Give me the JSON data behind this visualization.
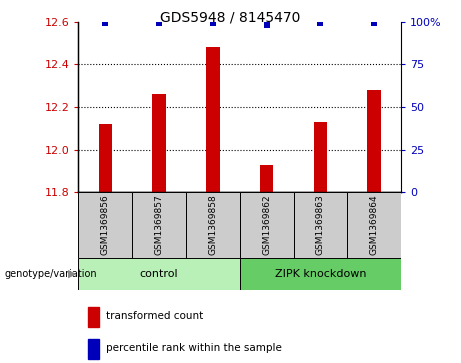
{
  "title": "GDS5948 / 8145470",
  "samples": [
    "GSM1369856",
    "GSM1369857",
    "GSM1369858",
    "GSM1369862",
    "GSM1369863",
    "GSM1369864"
  ],
  "bar_values": [
    12.12,
    12.26,
    12.48,
    11.93,
    12.13,
    12.28
  ],
  "dot_values": [
    99,
    99,
    99,
    98,
    99,
    99
  ],
  "ylim_left": [
    11.8,
    12.6
  ],
  "ylim_right": [
    0,
    100
  ],
  "yticks_left": [
    11.8,
    12.0,
    12.2,
    12.4,
    12.6
  ],
  "yticks_right": [
    0,
    25,
    50,
    75,
    100
  ],
  "bar_color": "#cc0000",
  "dot_color": "#0000bb",
  "groups": [
    {
      "label": "control",
      "indices": [
        0,
        1,
        2
      ],
      "color": "#b8f0b8"
    },
    {
      "label": "ZIPK knockdown",
      "indices": [
        3,
        4,
        5
      ],
      "color": "#66cc66"
    }
  ],
  "sample_box_color": "#cccccc",
  "legend_items": [
    {
      "color": "#cc0000",
      "label": "transformed count"
    },
    {
      "color": "#0000bb",
      "label": "percentile rank within the sample"
    }
  ],
  "genotype_label": "genotype/variation",
  "title_fontsize": 10,
  "tick_fontsize": 8,
  "label_fontsize": 8,
  "grid_yticks": [
    12.0,
    12.2,
    12.4
  ]
}
